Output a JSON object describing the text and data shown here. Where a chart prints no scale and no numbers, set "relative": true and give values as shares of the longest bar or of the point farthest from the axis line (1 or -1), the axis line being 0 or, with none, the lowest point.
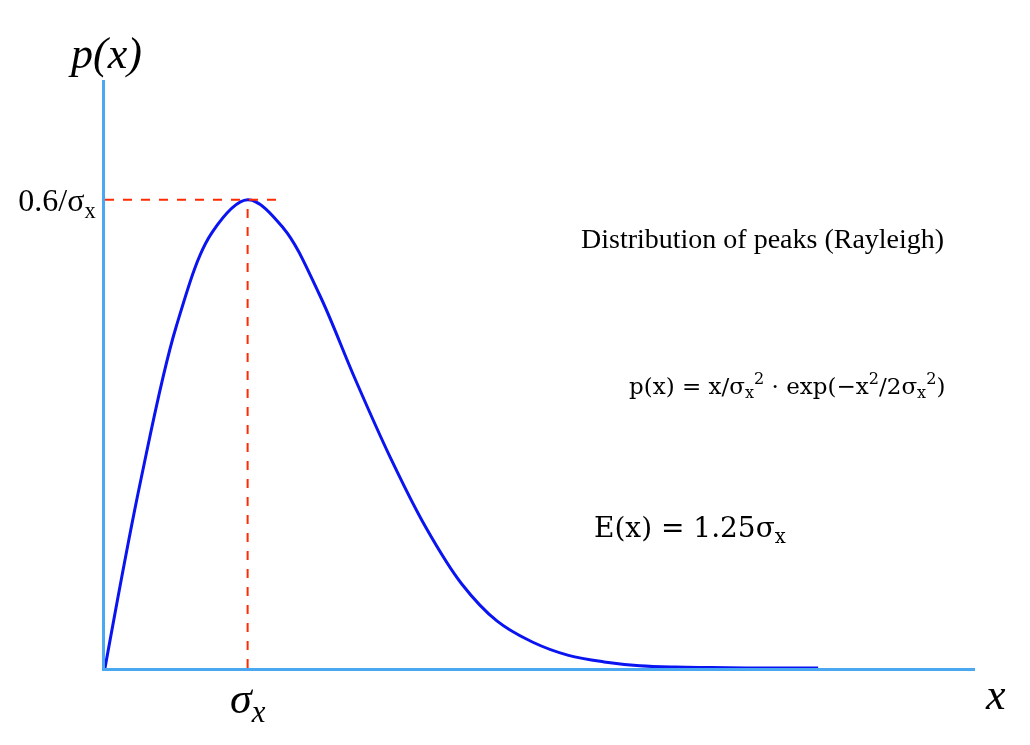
{
  "chart_data": {
    "type": "line",
    "relative": true,
    "xlabel": "x",
    "ylabel": "p(x)",
    "categories": [
      null,
      null,
      null,
      null,
      null,
      null,
      null,
      null,
      null,
      null,
      null,
      null,
      null,
      null,
      null,
      null,
      null,
      null,
      null,
      null,
      null
    ],
    "series": [
      {
        "color": "#0a14f0",
        "values": [
          0,
          0.4,
          0.73,
          0.93,
          1,
          0.94,
          0.8,
          0.62,
          0.45,
          0.3,
          0.18,
          0.1,
          0.055,
          0.027,
          0.013,
          0.005,
          0.002,
          0.001,
          0,
          0,
          0
        ]
      }
    ],
    "ref_lines": [
      {
        "axis": "y",
        "value": 1,
        "label": "0.6/σ$_{x}$",
        "color": "#ff2a00",
        "line_style": "dashed"
      }
    ],
    "annotations": [
      "σ$_{x}$",
      "Distribution of peaks (Rayleigh)",
      "p(x) = x/σ$_{x}$$^{2}$ · exp(−x$^{2}$/2σ$_{x}$$^{2}$)",
      "E(x) = 1.25σ$_{x}$"
    ],
    "legend": false,
    "marker": "none",
    "line_style": "solid"
  }
}
